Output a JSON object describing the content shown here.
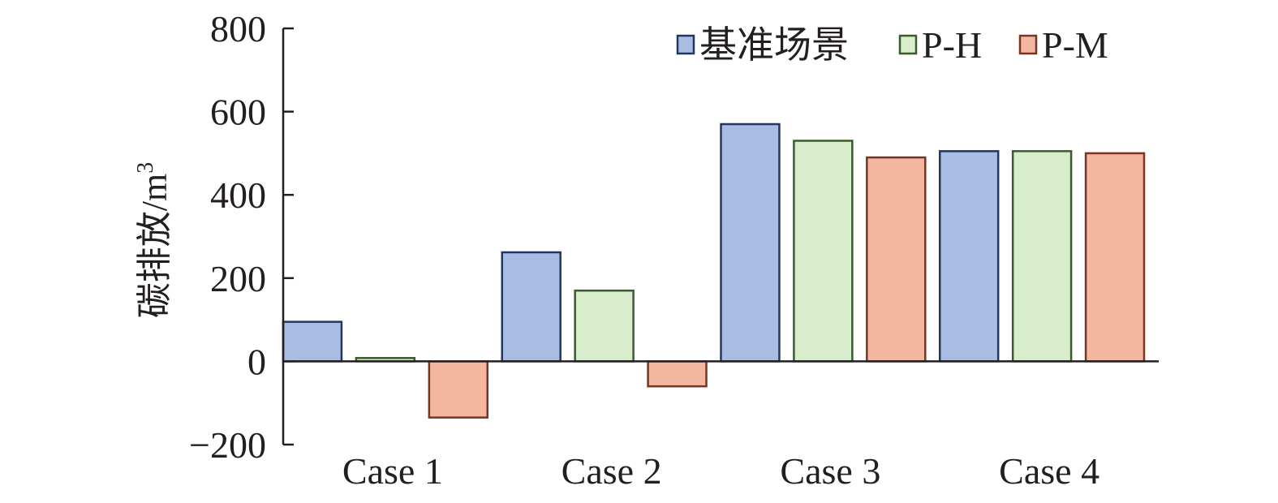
{
  "chart_data": {
    "type": "bar",
    "categories": [
      "Case 1",
      "Case 2",
      "Case 3",
      "Case 4"
    ],
    "series": [
      {
        "name": "基准场景",
        "values": [
          95,
          262,
          570,
          505
        ],
        "fill": "#a9bde3",
        "stroke": "#233660"
      },
      {
        "name": "P-H",
        "values": [
          8,
          170,
          530,
          505
        ],
        "fill": "#d8edcb",
        "stroke": "#3a5b2c"
      },
      {
        "name": "P-M",
        "values": [
          -135,
          -60,
          490,
          500
        ],
        "fill": "#f3b69e",
        "stroke": "#7a3424"
      }
    ],
    "yticks": [
      {
        "value": 800,
        "label": "800"
      },
      {
        "value": 600,
        "label": "600"
      },
      {
        "value": 400,
        "label": "400"
      },
      {
        "value": 200,
        "label": "200"
      },
      {
        "value": 0,
        "label": "0"
      },
      {
        "value": -200,
        "label": "−200"
      }
    ],
    "ylim": [
      -200,
      800
    ],
    "ylabel": {
      "main": "碳排放/m",
      "superscript": "3"
    },
    "xlabel": "",
    "title": "",
    "legend_position": "top-right",
    "grid": false
  }
}
